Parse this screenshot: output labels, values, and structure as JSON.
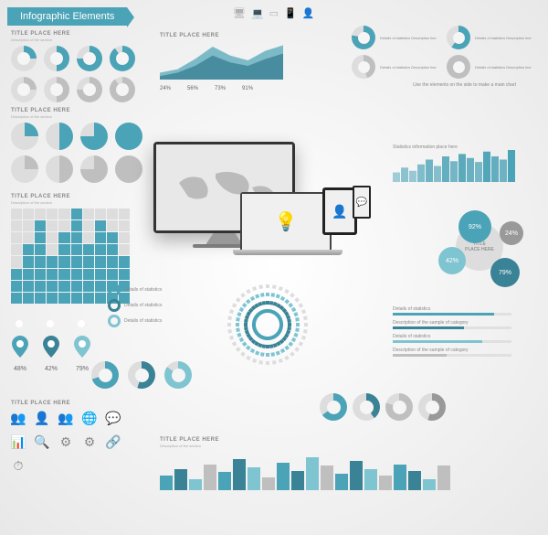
{
  "title": "Infographic Elements",
  "colors": {
    "primary": "#4ba3b7",
    "primary_dark": "#3a8295",
    "primary_light": "#7fc4d1",
    "grey": "#bfbfbf",
    "grey_dark": "#999999",
    "grey_light": "#dddddd",
    "text": "#888888",
    "bg": "#f5f5f5"
  },
  "section_title": "TITLE PLACE HERE",
  "section_sub": "Description of the section",
  "donut_section": {
    "rows": [
      [
        {
          "pct": 25,
          "c": "#4ba3b7"
        },
        {
          "pct": 50,
          "c": "#4ba3b7"
        },
        {
          "pct": 75,
          "c": "#4ba3b7"
        },
        {
          "pct": 90,
          "c": "#4ba3b7"
        }
      ],
      [
        {
          "pct": 25,
          "c": "#bfbfbf"
        },
        {
          "pct": 50,
          "c": "#bfbfbf"
        },
        {
          "pct": 75,
          "c": "#bfbfbf"
        },
        {
          "pct": 90,
          "c": "#bfbfbf"
        }
      ]
    ]
  },
  "pie_section": {
    "rows": [
      [
        {
          "pct": 25,
          "c": "#4ba3b7"
        },
        {
          "pct": 50,
          "c": "#4ba3b7"
        },
        {
          "pct": 75,
          "c": "#4ba3b7"
        },
        {
          "pct": 100,
          "c": "#4ba3b7"
        }
      ],
      [
        {
          "pct": 25,
          "c": "#bfbfbf"
        },
        {
          "pct": 50,
          "c": "#bfbfbf"
        },
        {
          "pct": 75,
          "c": "#bfbfbf"
        },
        {
          "pct": 100,
          "c": "#bfbfbf"
        }
      ]
    ]
  },
  "grid_chart": {
    "cols": 10,
    "rows": 8,
    "heights": [
      3,
      5,
      7,
      4,
      6,
      8,
      5,
      7,
      6,
      4
    ],
    "color": "#4ba3b7",
    "empty": "#dddddd"
  },
  "pins": [
    {
      "pct": 48,
      "label": "48%",
      "c": "#4ba3b7"
    },
    {
      "pct": 42,
      "label": "42%",
      "c": "#3a8295"
    },
    {
      "pct": 79,
      "label": "79%",
      "c": "#7fc4d1"
    }
  ],
  "top_right_donuts": [
    {
      "pct": 78,
      "c": "#4ba3b7",
      "label": "Details of statistics"
    },
    {
      "pct": 60,
      "c": "#4ba3b7",
      "label": "Details of statistics"
    },
    {
      "pct": 45,
      "c": "#bfbfbf",
      "label": "Details of statistics"
    },
    {
      "pct": 100,
      "c": "#bfbfbf",
      "label": "Details of statistics"
    }
  ],
  "top_right_note": "Use the elements on the side to make a main chart",
  "area_chart": {
    "series1": [
      10,
      15,
      30,
      48,
      35,
      28,
      42,
      50
    ],
    "series2": [
      5,
      10,
      20,
      35,
      25,
      20,
      30,
      38
    ],
    "c1": "#4ba3b7",
    "c2": "#3a8295",
    "ymax": 60
  },
  "pct_row": [
    "24%",
    "56%",
    "73%",
    "91%"
  ],
  "mini_area": {
    "title": "Statistics information place here",
    "values": [
      12,
      18,
      14,
      22,
      28,
      20,
      32,
      26,
      35,
      30,
      25,
      38,
      32,
      28,
      40
    ],
    "color": "#4ba3b7"
  },
  "bubble_cluster": {
    "center": {
      "label": "TITLE\\nPLACE HERE",
      "c": "#dddddd",
      "r": 26
    },
    "bubbles": [
      {
        "label": "92%",
        "c": "#4ba3b7",
        "r": 18,
        "x": -5,
        "y": -22
      },
      {
        "label": "24%",
        "c": "#999999",
        "r": 13,
        "x": 35,
        "y": -15
      },
      {
        "label": "42%",
        "c": "#7fc4d1",
        "r": 15,
        "x": -30,
        "y": 15
      },
      {
        "label": "79%",
        "c": "#3a8295",
        "r": 16,
        "x": 28,
        "y": 28
      }
    ]
  },
  "hbars": [
    {
      "label": "Details of statistics",
      "pct": 85,
      "c": "#4ba3b7"
    },
    {
      "label": "Description of the sample of category",
      "pct": 60,
      "c": "#3a8295"
    },
    {
      "label": "Details of statistics",
      "pct": 75,
      "c": "#7fc4d1"
    },
    {
      "label": "Description of the sample of category",
      "pct": 45,
      "c": "#bfbfbf"
    }
  ],
  "bottom_bars": {
    "values": [
      18,
      26,
      14,
      32,
      22,
      38,
      28,
      16,
      34,
      24,
      40,
      30,
      20,
      36,
      26,
      18,
      32,
      24,
      14,
      30
    ],
    "colors": [
      "#4ba3b7",
      "#3a8295",
      "#7fc4d1",
      "#bfbfbf"
    ],
    "ymax": 45
  },
  "steps": [
    {
      "c": "#4ba3b7",
      "label": "Details of statistics"
    },
    {
      "c": "#3a8295",
      "label": "Details of statistics"
    },
    {
      "c": "#7fc4d1",
      "label": "Details of statistics"
    }
  ],
  "icons": [
    "👥",
    "👤",
    "👥",
    "🌐",
    "💬",
    "📊",
    "🔍",
    "⚙",
    "⚙",
    "🔗",
    "⏱"
  ],
  "radial": {
    "colors": [
      "#4ba3b7",
      "#3a8295",
      "#7fc4d1",
      "#dddddd"
    ],
    "rings": 4
  }
}
